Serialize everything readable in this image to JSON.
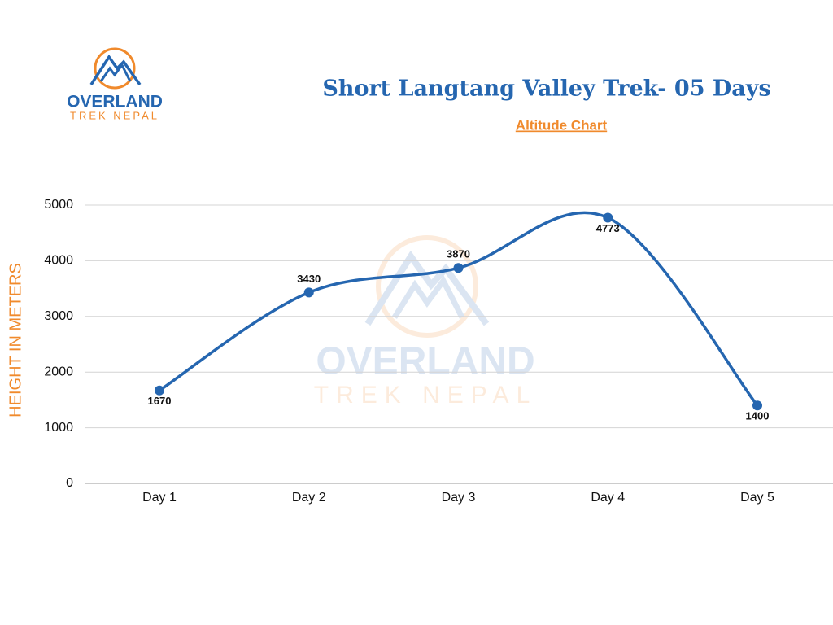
{
  "logo": {
    "name": "OVERLAND",
    "tagline": "TREK NEPAL"
  },
  "chart_data": {
    "type": "line",
    "title": "Short Langtang Valley Trek- 05 Days",
    "subtitle": "Altitude Chart",
    "y_label": "HEIGHT IN METERS",
    "categories": [
      "Day 1",
      "Day 2",
      "Day 3",
      "Day 4",
      "Day 5"
    ],
    "values": [
      1670,
      3430,
      3870,
      4773,
      1400
    ],
    "color": "#2566b0",
    "ylim": [
      0,
      5000
    ],
    "yticks": [
      0,
      1000,
      2000,
      3000,
      4000,
      5000
    ],
    "grid": true
  }
}
